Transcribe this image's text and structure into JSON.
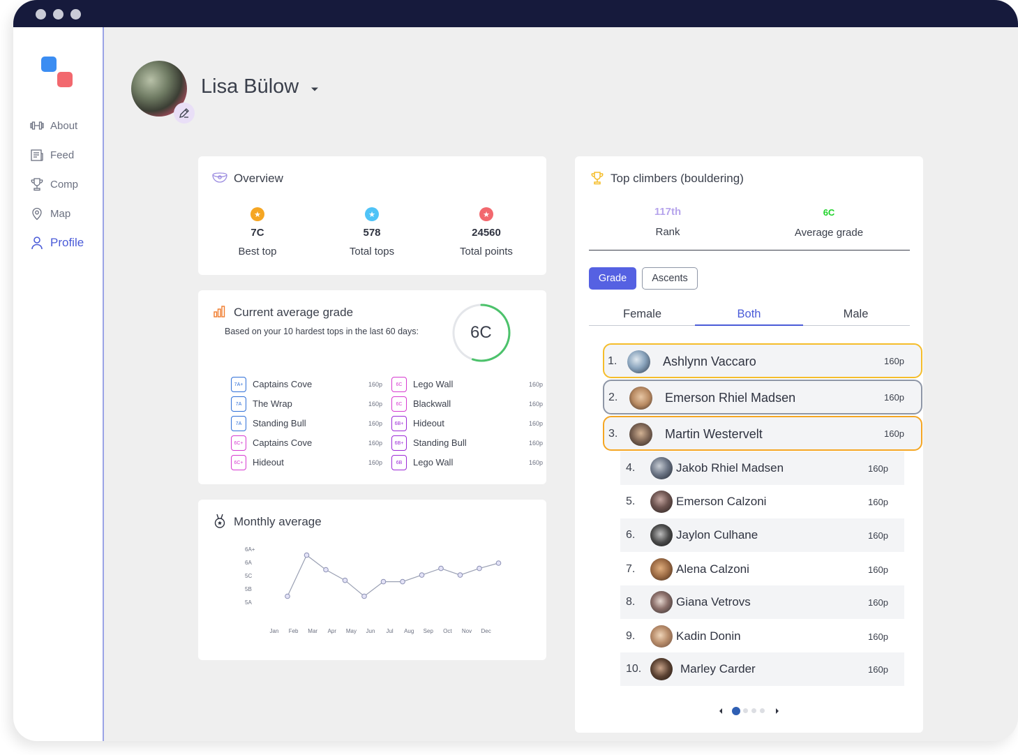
{
  "window": {
    "accent": "#4a5bd8",
    "titlebar": "#161a3c"
  },
  "sidebar": {
    "items": [
      {
        "label": "About",
        "icon": "dumbbell-icon"
      },
      {
        "label": "Feed",
        "icon": "newspaper-icon"
      },
      {
        "label": "Comp",
        "icon": "trophy-icon"
      },
      {
        "label": "Map",
        "icon": "map-pin-icon"
      },
      {
        "label": "Profile",
        "icon": "user-icon",
        "active": true
      }
    ]
  },
  "profile": {
    "name": "Lisa Bülow"
  },
  "overview": {
    "title": "Overview",
    "stats": [
      {
        "value": "7C",
        "label": "Best top",
        "color": "#f5a623"
      },
      {
        "value": "578",
        "label": "Total tops",
        "color": "#4fc3f7"
      },
      {
        "value": "24560",
        "label": "Total points",
        "color": "#f2686e"
      }
    ]
  },
  "average_grade": {
    "title": "Current average grade",
    "subtitle": "Based on your 10 hardest tops in the last 60 days:",
    "grade": "6C",
    "ring_progress": 0.55,
    "tops_left": [
      {
        "grade": "7A+",
        "name": "Captains Cove",
        "points": "160p",
        "color": "#2f6fd8"
      },
      {
        "grade": "7A",
        "name": "The Wrap",
        "points": "160p",
        "color": "#2f6fd8"
      },
      {
        "grade": "7A",
        "name": "Standing Bull",
        "points": "160p",
        "color": "#2f6fd8"
      },
      {
        "grade": "6C+",
        "name": "Captains Cove",
        "points": "160p",
        "color": "#d63ad0"
      },
      {
        "grade": "6C+",
        "name": "Hideout",
        "points": "160p",
        "color": "#d63ad0"
      }
    ],
    "tops_right": [
      {
        "grade": "6C",
        "name": "Lego Wall",
        "points": "160p",
        "color": "#d63ad0"
      },
      {
        "grade": "6C",
        "name": "Blackwall",
        "points": "160p",
        "color": "#d63ad0"
      },
      {
        "grade": "6B+",
        "name": "Hideout",
        "points": "160p",
        "color": "#9c2ad6"
      },
      {
        "grade": "6B+",
        "name": "Standing Bull",
        "points": "160p",
        "color": "#9c2ad6"
      },
      {
        "grade": "6B",
        "name": "Lego Wall",
        "points": "160p",
        "color": "#9c2ad6"
      }
    ]
  },
  "monthly": {
    "title": "Monthly average",
    "chart_data": {
      "type": "line",
      "categories": [
        "Jan",
        "Feb",
        "Mar",
        "Apr",
        "May",
        "Jun",
        "Jul",
        "Aug",
        "Sep",
        "Oct",
        "Nov",
        "Dec"
      ],
      "y_ticks": [
        "6A+",
        "6A",
        "5C",
        "5B",
        "5A"
      ],
      "values": [
        0.5,
        3.6,
        2.5,
        1.7,
        0.5,
        1.6,
        1.6,
        2.1,
        2.6,
        2.1,
        2.6,
        3.0
      ],
      "ylim": [
        0,
        4
      ],
      "grid": false
    }
  },
  "top_climbers": {
    "title": "Top climbers (bouldering)",
    "rank": {
      "value": "117th",
      "label": "Rank",
      "color": "#b6a4ec"
    },
    "avg_grade": {
      "value": "6C",
      "label": "Average grade",
      "color": "#1fd22a"
    },
    "buttons": {
      "grade": "Grade",
      "ascents": "Ascents"
    },
    "tabs": {
      "female": "Female",
      "both": "Both",
      "male": "Male"
    },
    "podium": [
      {
        "rank": "1.",
        "name": "Ashlynn Vaccaro",
        "points": "160p",
        "border": "#f5bd2a"
      },
      {
        "rank": "2.",
        "name": "Emerson Rhiel Madsen",
        "points": "160p",
        "border": "#8e96a6"
      },
      {
        "rank": "3.",
        "name": "Martin Westervelt",
        "points": "160p",
        "border": "#f5a623"
      }
    ],
    "list": [
      {
        "rank": "4.",
        "name": "Jakob Rhiel Madsen",
        "points": "160p"
      },
      {
        "rank": "5.",
        "name": "Emerson Calzoni",
        "points": "160p"
      },
      {
        "rank": "6.",
        "name": "Jaylon Culhane",
        "points": "160p"
      },
      {
        "rank": "7.",
        "name": "Alena Calzoni",
        "points": "160p"
      },
      {
        "rank": "8.",
        "name": "Giana Vetrovs",
        "points": "160p"
      },
      {
        "rank": "9.",
        "name": "Kadin Donin",
        "points": "160p"
      },
      {
        "rank": "10.",
        "name": "Marley Carder",
        "points": "160p"
      }
    ],
    "pagination": {
      "current": 1,
      "total": 4
    }
  }
}
